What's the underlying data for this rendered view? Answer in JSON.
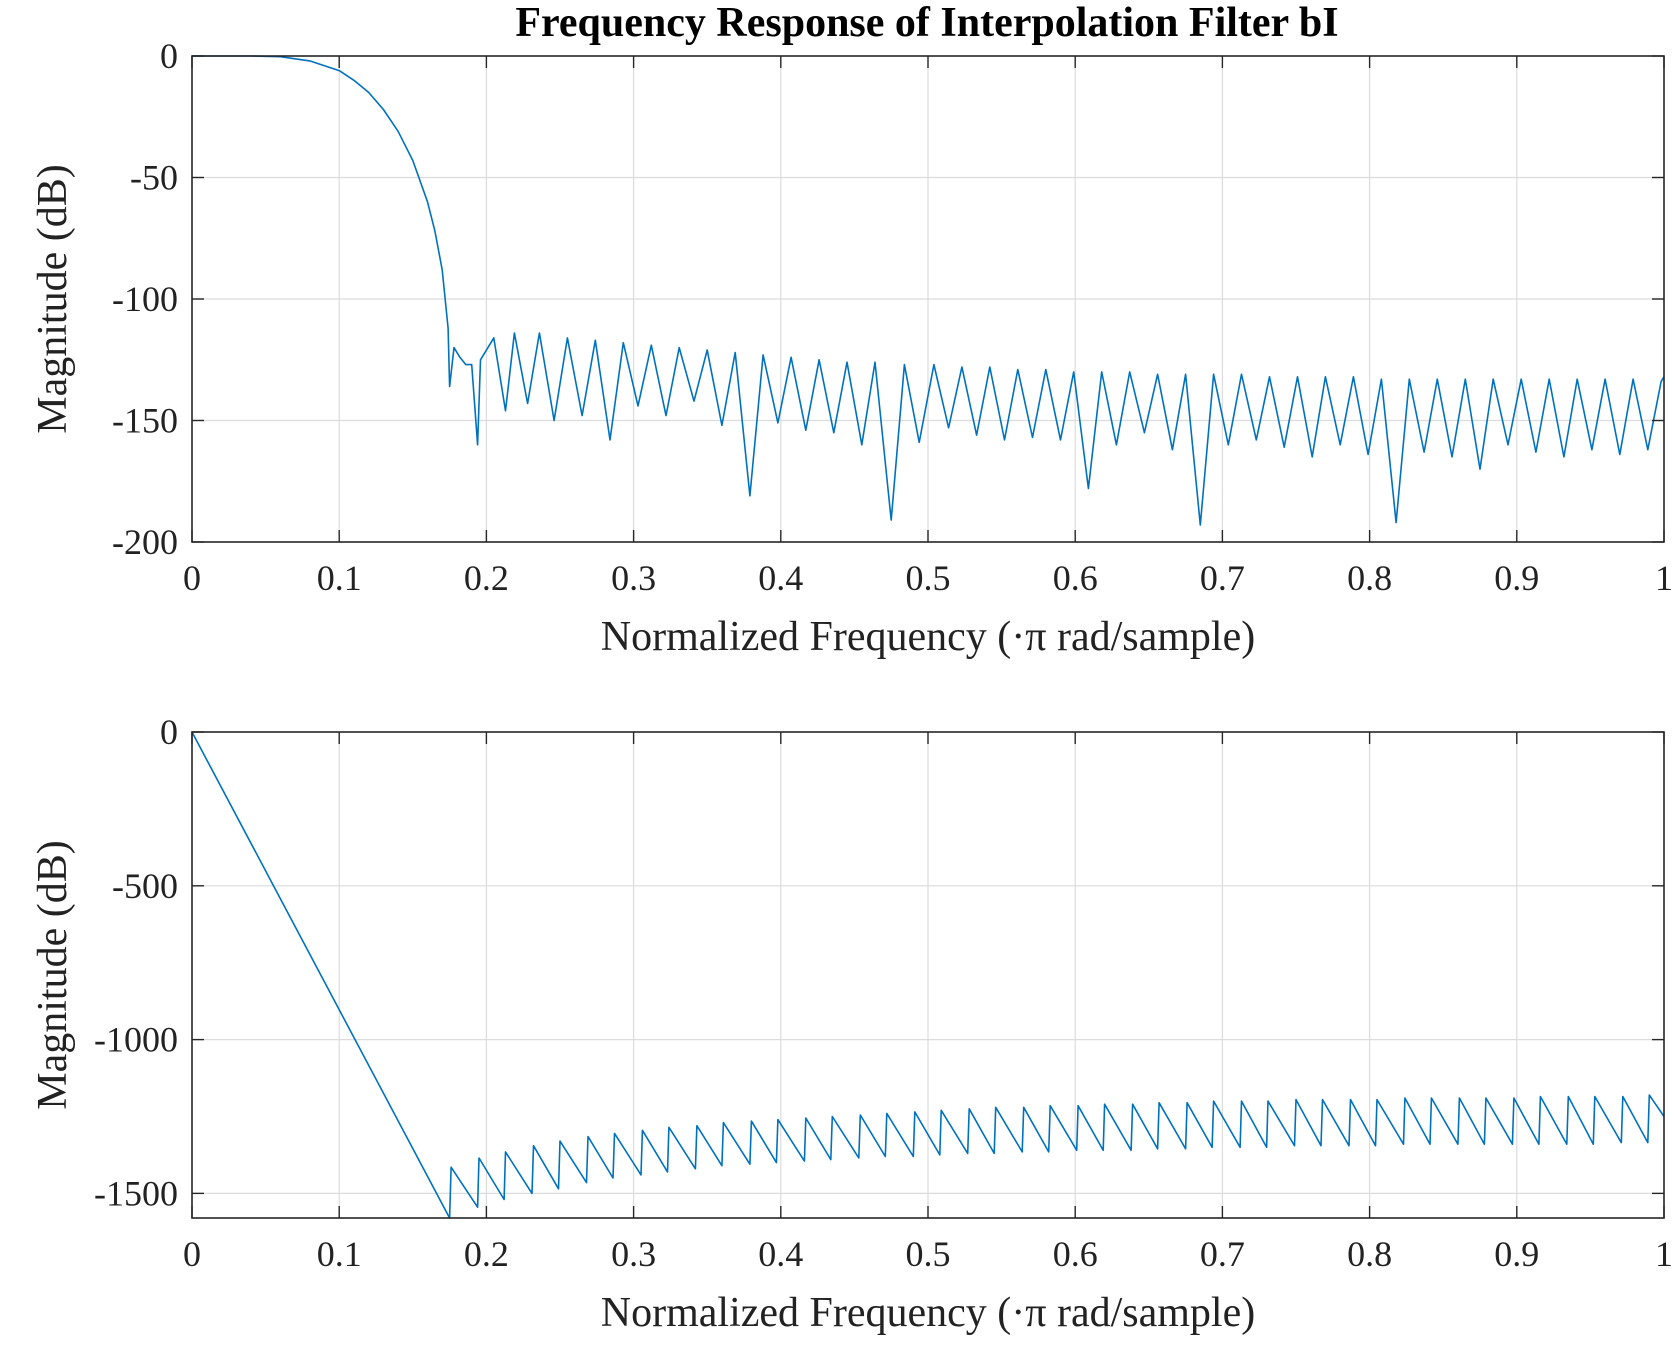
{
  "figure": {
    "title": "Frequency Response of Interpolation Filter bI"
  },
  "colors": {
    "series": "#0072BD",
    "grid": "#dcdcdc",
    "axes": "#262626"
  },
  "chart_data": [
    {
      "type": "line",
      "title": "Frequency Response of Interpolation Filter bI",
      "xlabel": "Normalized Frequency  (·π rad/sample)",
      "ylabel": "Magnitude (dB)",
      "xlim": [
        0,
        1
      ],
      "ylim": [
        -200,
        0
      ],
      "grid": true,
      "xticks": [
        0,
        0.1,
        0.2,
        0.3,
        0.4,
        0.5,
        0.6,
        0.7,
        0.8,
        0.9,
        1
      ],
      "xtick_labels": [
        "0",
        "0.1",
        "0.2",
        "0.3",
        "0.4",
        "0.5",
        "0.6",
        "0.7",
        "0.8",
        "0.9",
        "1"
      ],
      "yticks": [
        0,
        -50,
        -100,
        -150,
        -200
      ],
      "ytick_labels": [
        "0",
        "-50",
        "-100",
        "-150",
        "-200"
      ],
      "series": [
        {
          "x": [
            0,
            0.02,
            0.04,
            0.06,
            0.08,
            0.1,
            0.11,
            0.12,
            0.13,
            0.14,
            0.15,
            0.16,
            0.165,
            0.17,
            0.174,
            0.175,
            0.178,
            0.182,
            0.186,
            0.19,
            0.194,
            0.196,
            0.205,
            0.213,
            0.219,
            0.228,
            0.236,
            0.246,
            0.255,
            0.265,
            0.274,
            0.284,
            0.293,
            0.303,
            0.312,
            0.322,
            0.331,
            0.341,
            0.35,
            0.36,
            0.369,
            0.379,
            0.388,
            0.398,
            0.407,
            0.417,
            0.426,
            0.436,
            0.445,
            0.455,
            0.464,
            0.475,
            0.484,
            0.494,
            0.504,
            0.514,
            0.523,
            0.533,
            0.542,
            0.552,
            0.561,
            0.571,
            0.58,
            0.59,
            0.599,
            0.609,
            0.618,
            0.628,
            0.637,
            0.647,
            0.656,
            0.666,
            0.675,
            0.685,
            0.694,
            0.704,
            0.713,
            0.723,
            0.732,
            0.742,
            0.751,
            0.761,
            0.77,
            0.78,
            0.789,
            0.799,
            0.808,
            0.818,
            0.827,
            0.837,
            0.846,
            0.856,
            0.865,
            0.875,
            0.884,
            0.894,
            0.903,
            0.913,
            0.922,
            0.932,
            0.941,
            0.951,
            0.96,
            0.97,
            0.979,
            0.989,
            0.998,
            1.0
          ],
          "y": [
            0,
            0,
            0,
            -0.3,
            -2,
            -6,
            -10,
            -15,
            -22,
            -31,
            -43,
            -60,
            -72,
            -88,
            -112,
            -136,
            -120,
            -124,
            -127,
            -127,
            -160,
            -125,
            -116,
            -146,
            -114,
            -143,
            -114,
            -150,
            -116,
            -148,
            -117,
            -158,
            -118,
            -144,
            -119,
            -148,
            -120,
            -142,
            -121,
            -152,
            -122,
            -181,
            -123,
            -151,
            -124,
            -154,
            -125,
            -155,
            -126,
            -160,
            -126,
            -191,
            -127,
            -159,
            -127,
            -153,
            -128,
            -156,
            -128,
            -158,
            -129,
            -157,
            -129,
            -158,
            -130,
            -178,
            -130,
            -160,
            -130,
            -155,
            -131,
            -162,
            -131,
            -193,
            -131,
            -160,
            -131,
            -158,
            -132,
            -161,
            -132,
            -165,
            -132,
            -160,
            -132,
            -164,
            -133,
            -192,
            -133,
            -163,
            -133,
            -165,
            -133,
            -170,
            -133,
            -160,
            -133,
            -163,
            -133,
            -165,
            -133,
            -162,
            -133,
            -164,
            -133,
            -162,
            -134,
            -132
          ]
        }
      ]
    },
    {
      "type": "line",
      "title": "",
      "xlabel": "Normalized Frequency  (·π rad/sample)",
      "ylabel": "Magnitude (dB)",
      "xlim": [
        0,
        1
      ],
      "ylim": [
        -1580,
        0
      ],
      "grid": true,
      "xticks": [
        0,
        0.1,
        0.2,
        0.3,
        0.4,
        0.5,
        0.6,
        0.7,
        0.8,
        0.9,
        1
      ],
      "xtick_labels": [
        "0",
        "0.1",
        "0.2",
        "0.3",
        "0.4",
        "0.5",
        "0.6",
        "0.7",
        "0.8",
        "0.9",
        "1"
      ],
      "yticks": [
        0,
        -500,
        -1000,
        -1500
      ],
      "ytick_labels": [
        "0",
        "-500",
        "-1000",
        "-1500"
      ],
      "series": [
        {
          "x": [
            0,
            0.175,
            0.176,
            0.194,
            0.195,
            0.212,
            0.213,
            0.231,
            0.232,
            0.249,
            0.25,
            0.268,
            0.269,
            0.286,
            0.287,
            0.305,
            0.306,
            0.323,
            0.324,
            0.342,
            0.343,
            0.36,
            0.361,
            0.379,
            0.38,
            0.397,
            0.398,
            0.416,
            0.417,
            0.434,
            0.435,
            0.453,
            0.454,
            0.471,
            0.472,
            0.49,
            0.491,
            0.508,
            0.509,
            0.527,
            0.528,
            0.545,
            0.546,
            0.564,
            0.565,
            0.582,
            0.583,
            0.601,
            0.602,
            0.619,
            0.62,
            0.638,
            0.639,
            0.656,
            0.657,
            0.675,
            0.676,
            0.693,
            0.694,
            0.712,
            0.713,
            0.73,
            0.731,
            0.749,
            0.75,
            0.767,
            0.768,
            0.786,
            0.787,
            0.804,
            0.805,
            0.823,
            0.824,
            0.841,
            0.842,
            0.86,
            0.861,
            0.878,
            0.879,
            0.897,
            0.898,
            0.915,
            0.916,
            0.934,
            0.935,
            0.952,
            0.953,
            0.971,
            0.972,
            0.989,
            0.99,
            1.0
          ],
          "y": [
            0,
            -1580,
            -1415,
            -1545,
            -1385,
            -1520,
            -1365,
            -1500,
            -1345,
            -1485,
            -1330,
            -1465,
            -1315,
            -1450,
            -1305,
            -1440,
            -1295,
            -1430,
            -1285,
            -1420,
            -1280,
            -1410,
            -1270,
            -1405,
            -1265,
            -1400,
            -1260,
            -1395,
            -1255,
            -1390,
            -1250,
            -1385,
            -1245,
            -1380,
            -1240,
            -1380,
            -1235,
            -1375,
            -1230,
            -1370,
            -1225,
            -1370,
            -1220,
            -1365,
            -1220,
            -1365,
            -1215,
            -1360,
            -1215,
            -1360,
            -1210,
            -1360,
            -1210,
            -1355,
            -1205,
            -1355,
            -1205,
            -1350,
            -1200,
            -1350,
            -1200,
            -1350,
            -1200,
            -1345,
            -1195,
            -1345,
            -1195,
            -1345,
            -1195,
            -1345,
            -1195,
            -1340,
            -1190,
            -1340,
            -1190,
            -1340,
            -1190,
            -1340,
            -1190,
            -1340,
            -1190,
            -1340,
            -1185,
            -1340,
            -1185,
            -1340,
            -1185,
            -1335,
            -1185,
            -1335,
            -1180,
            -1250
          ]
        }
      ]
    }
  ]
}
